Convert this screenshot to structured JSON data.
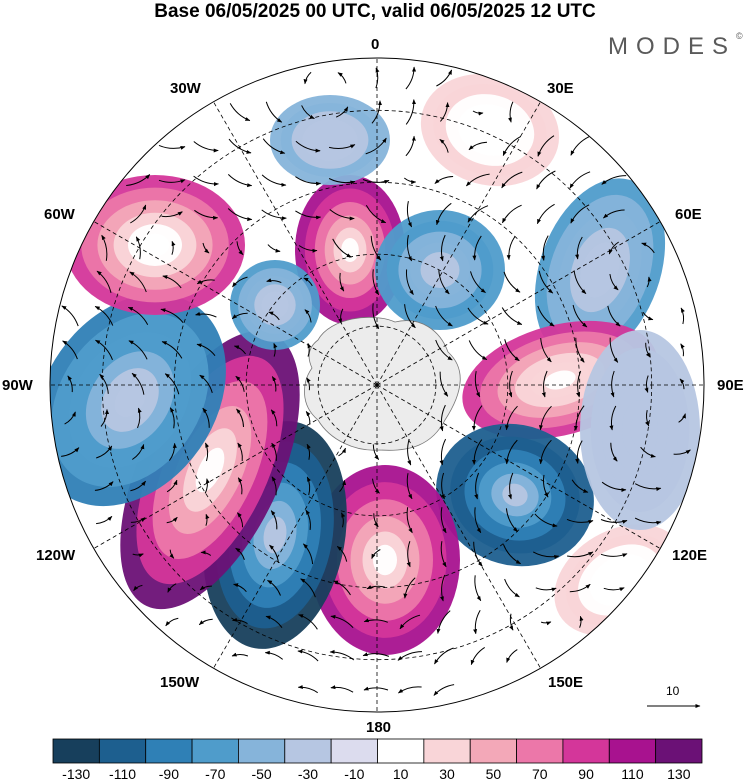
{
  "title": "Base 06/05/2025 00 UTC, valid 06/05/2025 12 UTC",
  "logo": "MODES",
  "logo_mark": "©",
  "longitude_labels": {
    "lon_0": "0",
    "lon_30e": "30E",
    "lon_60e": "60E",
    "lon_90e": "90E",
    "lon_120e": "120E",
    "lon_150e": "150E",
    "lon_180": "180",
    "lon_150w": "150W",
    "lon_120w": "120W",
    "lon_90w": "90W",
    "lon_60w": "60W",
    "lon_30w": "30W"
  },
  "reference_vector_label": "10",
  "colorbar": {
    "tick_labels": [
      "-130",
      "-110",
      "-90",
      "-70",
      "-50",
      "-30",
      "-10",
      "10",
      "30",
      "50",
      "70",
      "90",
      "110",
      "130"
    ],
    "colors": [
      "#173f5c",
      "#1d5f8f",
      "#2f80b6",
      "#4f9ccb",
      "#86b4da",
      "#b6c6e2",
      "#dcdcee",
      "#ffffff",
      "#f9d5d8",
      "#f3a8b8",
      "#ec77a9",
      "#d4369a",
      "#a8128f",
      "#6b1176"
    ]
  },
  "map": {
    "projection": "south-polar-stereographic",
    "field_colors": {
      "positive_strong": "#a8128f",
      "positive_mid": "#ec77a9",
      "positive_weak": "#f9d5d8",
      "negative_strong": "#173f5c",
      "negative_mid": "#2f80b6",
      "negative_weak": "#b6c6e2",
      "antarctica": "#ececec"
    },
    "anomaly_centers": [
      {
        "lon_label": "0",
        "sign": "positive",
        "peak": 110
      },
      {
        "lon_label": "30E",
        "sign": "positive",
        "peak": 40
      },
      {
        "lon_label": "45E",
        "sign": "negative",
        "peak": -70
      },
      {
        "lon_label": "60E",
        "sign": "negative",
        "peak": -60
      },
      {
        "lon_label": "90E",
        "sign": "positive",
        "peak": 100
      },
      {
        "lon_label": "120E",
        "sign": "negative",
        "peak": -110
      },
      {
        "lon_label": "130E",
        "sign": "positive",
        "peak": 40
      },
      {
        "lon_label": "180",
        "sign": "positive",
        "peak": 110
      },
      {
        "lon_label": "150W",
        "sign": "negative",
        "peak": -130
      },
      {
        "lon_label": "120W",
        "sign": "positive",
        "peak": 130
      },
      {
        "lon_label": "90W",
        "sign": "negative",
        "peak": -80
      },
      {
        "lon_label": "60W",
        "sign": "positive",
        "peak": 90
      },
      {
        "lon_label": "30W",
        "sign": "negative",
        "peak": -40
      }
    ]
  }
}
